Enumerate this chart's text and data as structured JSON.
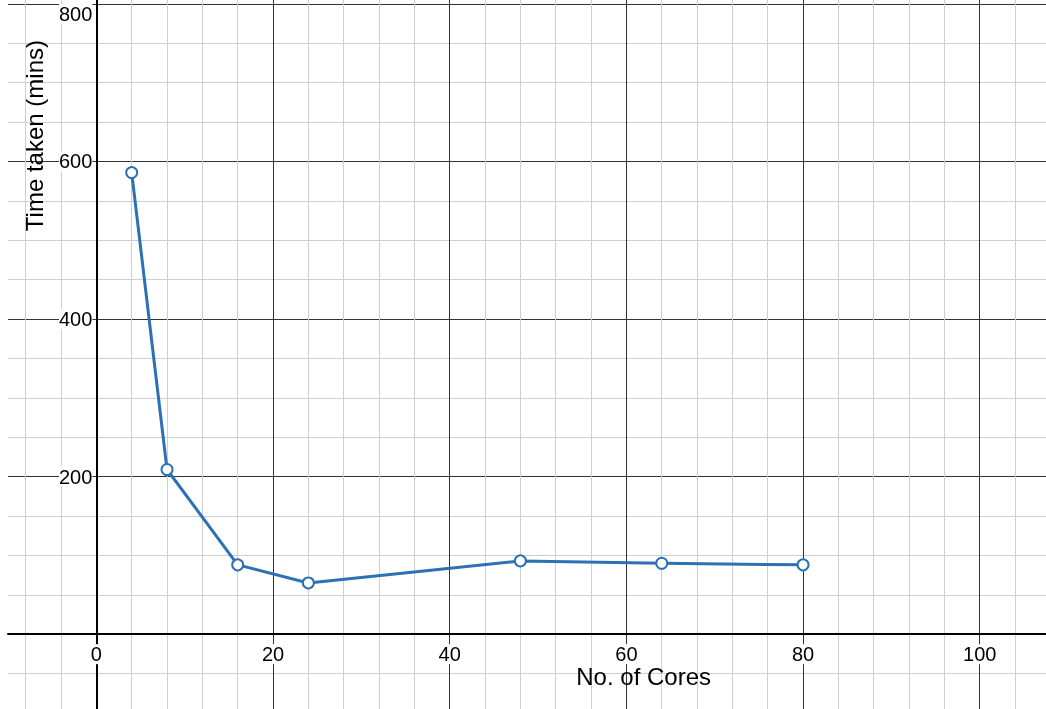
{
  "chart_data": {
    "type": "line",
    "xlabel": "No. of Cores",
    "ylabel": "Time taken (mins)",
    "x": [
      4,
      8,
      16,
      24,
      48,
      64,
      80
    ],
    "series": [
      {
        "color": "#2d70b3",
        "values": [
          586,
          209,
          88,
          65,
          93,
          90,
          88
        ]
      }
    ],
    "xlim": [
      -10,
      107.5
    ],
    "ylim": [
      -95,
      805
    ],
    "xticks": [
      {
        "value": -8,
        "label": null
      },
      {
        "value": -4,
        "label": null
      },
      0,
      {
        "value": 4,
        "label": null
      },
      {
        "value": 8,
        "label": null
      },
      {
        "value": 12,
        "label": null
      },
      {
        "value": 16,
        "label": null
      },
      20,
      {
        "value": 24,
        "label": null
      },
      {
        "value": 28,
        "label": null
      },
      {
        "value": 32,
        "label": null
      },
      {
        "value": 36,
        "label": null
      },
      40,
      {
        "value": 44,
        "label": null
      },
      {
        "value": 48,
        "label": null
      },
      {
        "value": 52,
        "label": null
      },
      {
        "value": 56,
        "label": null
      },
      60,
      {
        "value": 64,
        "label": null
      },
      {
        "value": 68,
        "label": null
      },
      {
        "value": 72,
        "label": null
      },
      {
        "value": 76,
        "label": null
      },
      80,
      {
        "value": 84,
        "label": null
      },
      {
        "value": 88,
        "label": null
      },
      {
        "value": 92,
        "label": null
      },
      {
        "value": 96,
        "label": null
      },
      100,
      {
        "value": 104,
        "label": null
      }
    ],
    "yticks": [
      {
        "value": -50,
        "label": null
      },
      {
        "value": 50,
        "label": null
      },
      {
        "value": 100,
        "label": null
      },
      {
        "value": 150,
        "label": null
      },
      200,
      {
        "value": 250,
        "label": null
      },
      {
        "value": 300,
        "label": null
      },
      {
        "value": 350,
        "label": null
      },
      400,
      {
        "value": 450,
        "label": null
      },
      {
        "value": 500,
        "label": null
      },
      {
        "value": 550,
        "label": null
      },
      600,
      {
        "value": 650,
        "label": null
      },
      {
        "value": 700,
        "label": null
      },
      {
        "value": 750,
        "label": null
      },
      800
    ],
    "grid": true,
    "marker": "circle",
    "line_style": "solid"
  }
}
